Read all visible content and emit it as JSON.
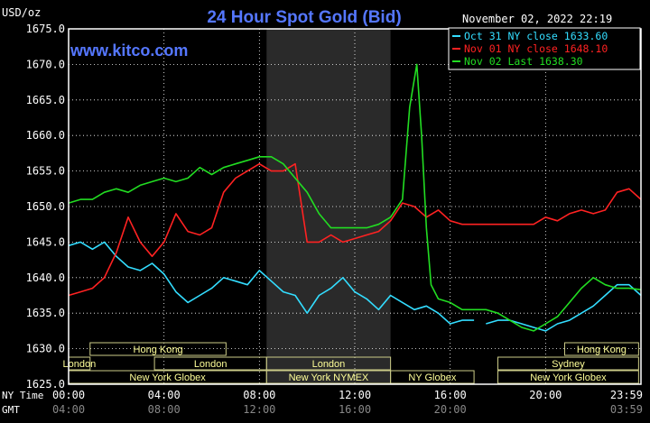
{
  "chart_data": {
    "type": "line",
    "title": "24 Hour Spot Gold (Bid)",
    "watermark": "www.kitco.com",
    "unit": "USD/oz",
    "datetime": "November 02, 2022 22:19",
    "ylim": [
      1625.0,
      1675.0
    ],
    "yticks": [
      "1675.0",
      "1670.0",
      "1665.0",
      "1660.0",
      "1655.0",
      "1650.0",
      "1645.0",
      "1640.0",
      "1635.0",
      "1630.0",
      "1625.0"
    ],
    "xlim": [
      0,
      24
    ],
    "xticks_ny": [
      "00:00",
      "04:00",
      "08:00",
      "12:00",
      "16:00",
      "20:00",
      "23:59"
    ],
    "xticks_gmt": [
      "04:00",
      "08:00",
      "12:00",
      "16:00",
      "20:00",
      "03:59"
    ],
    "x_row_labels": [
      "NY Time",
      "GMT"
    ],
    "legend": [
      {
        "label": "Oct 31 NY close 1633.60",
        "color": "#33ddff"
      },
      {
        "label": "Nov 01 NY close 1648.10",
        "color": "#ff2222"
      },
      {
        "label": "Nov 02 Last 1638.30",
        "color": "#22dd22"
      }
    ],
    "colors": {
      "background": "#000000",
      "frame": "#ffffff",
      "grid": "#ffffff",
      "shade": "#2a2a2a",
      "axis_text": "#ffffff",
      "title": "#5577ff",
      "watermark": "#5577ff",
      "session_text": "#ffff99",
      "session_border": "#cccc88"
    },
    "session_shade": [
      8.3,
      13.5
    ],
    "sessions": [
      {
        "row": 0,
        "label": "Hong Kong",
        "start": 0.9,
        "end": 6.6
      },
      {
        "row": 0,
        "label": "Hong Kong",
        "start": 20.8,
        "end": 23.9
      },
      {
        "row": 1,
        "label": "London",
        "start": 0.0,
        "end": 0.9
      },
      {
        "row": 1,
        "label": "London",
        "start": 3.6,
        "end": 8.3
      },
      {
        "row": 1,
        "label": "London",
        "start": 8.3,
        "end": 13.5
      },
      {
        "row": 1,
        "label": "Sydney",
        "start": 18.0,
        "end": 23.9
      },
      {
        "row": 2,
        "label": "New York Globex",
        "start": 0.0,
        "end": 8.3
      },
      {
        "row": 2,
        "label": "New York NYMEX",
        "start": 8.3,
        "end": 13.5
      },
      {
        "row": 2,
        "label": "NY Globex",
        "start": 13.5,
        "end": 17.0
      },
      {
        "row": 2,
        "label": "New York Globex",
        "start": 18.0,
        "end": 23.9
      }
    ],
    "series": [
      {
        "name": "Oct 31 NY close 1633.60",
        "color": "#33ddff",
        "x": [
          0,
          0.5,
          1,
          1.5,
          2,
          2.5,
          3,
          3.5,
          4,
          4.5,
          5,
          5.5,
          6,
          6.5,
          7,
          7.5,
          8,
          8.5,
          9,
          9.5,
          10,
          10.5,
          11,
          11.5,
          12,
          12.5,
          13,
          13.5,
          14,
          14.5,
          15,
          15.5,
          16,
          16.5,
          17,
          null,
          17.5,
          18,
          18.5,
          19,
          19.5,
          20,
          20.5,
          21,
          21.5,
          22,
          22.5,
          23,
          23.5,
          24
        ],
        "y": [
          1644.5,
          1645,
          1644,
          1645,
          1643,
          1641.5,
          1641,
          1642,
          1640.5,
          1638,
          1636.5,
          1637.5,
          1638.5,
          1640,
          1639.5,
          1639,
          1641,
          1639.5,
          1638,
          1637.5,
          1635,
          1637.5,
          1638.5,
          1640,
          1638,
          1637,
          1635.5,
          1637.5,
          1636.5,
          1635.5,
          1636,
          1635,
          1633.5,
          1634,
          1634,
          null,
          1633.5,
          1634,
          1634,
          1633.5,
          1633,
          1632.5,
          1633.5,
          1634,
          1635,
          1636,
          1637.5,
          1639,
          1639,
          1637.5
        ]
      },
      {
        "name": "Nov 01 NY close 1648.10",
        "color": "#ff2222",
        "x": [
          0,
          0.5,
          1,
          1.5,
          2,
          2.5,
          3,
          3.5,
          4,
          4.5,
          5,
          5.5,
          6,
          6.5,
          7,
          7.5,
          8,
          8.5,
          9,
          9.5,
          10,
          10.5,
          11,
          11.5,
          12,
          12.5,
          13,
          13.5,
          14,
          14.5,
          15,
          15.5,
          16,
          16.5,
          17,
          17.5,
          18,
          18.5,
          19,
          19.5,
          20,
          20.5,
          21,
          21.5,
          22,
          22.5,
          23,
          23.5,
          24
        ],
        "y": [
          1637.5,
          1638,
          1638.5,
          1640,
          1643.5,
          1648.5,
          1645,
          1643,
          1645,
          1649,
          1646.5,
          1646,
          1647,
          1652,
          1654,
          1655,
          1656,
          1655,
          1655,
          1656,
          1645,
          1645,
          1646,
          1645,
          1645.5,
          1646,
          1646.5,
          1648,
          1650.5,
          1650,
          1648.5,
          1649.5,
          1648,
          1647.5,
          1647.5,
          1647.5,
          1647.5,
          1647.5,
          1647.5,
          1647.5,
          1648.5,
          1648,
          1649,
          1649.5,
          1649,
          1649.5,
          1652,
          1652.5,
          1651
        ]
      },
      {
        "name": "Nov 02 Last 1638.30",
        "color": "#22dd22",
        "x": [
          0,
          0.5,
          1,
          1.5,
          2,
          2.5,
          3,
          3.5,
          4,
          4.5,
          5,
          5.5,
          6,
          6.5,
          7,
          7.5,
          8,
          8.5,
          9,
          9.5,
          10,
          10.5,
          11,
          11.5,
          12,
          12.5,
          13,
          13.5,
          14,
          14.3,
          14.6,
          14.8,
          15,
          15.2,
          15.5,
          16,
          16.5,
          17,
          17.5,
          18,
          18.5,
          19,
          19.5,
          20,
          20.5,
          21,
          21.5,
          22,
          22.5,
          23,
          23.5,
          24
        ],
        "y": [
          1650.5,
          1651,
          1651,
          1652,
          1652.5,
          1652,
          1653,
          1653.5,
          1654,
          1653.5,
          1654,
          1655.5,
          1654.5,
          1655.5,
          1656,
          1656.5,
          1657,
          1657,
          1656,
          1654,
          1652,
          1649,
          1647,
          1647,
          1647,
          1647,
          1647.5,
          1648.5,
          1651,
          1664,
          1670,
          1660,
          1647,
          1639,
          1637,
          1636.5,
          1635.5,
          1635.5,
          1635.5,
          1635,
          1634,
          1633,
          1632.5,
          1633.5,
          1634.5,
          1636.5,
          1638.5,
          1640,
          1639,
          1638.5,
          1638.5,
          1638.3
        ]
      }
    ]
  }
}
